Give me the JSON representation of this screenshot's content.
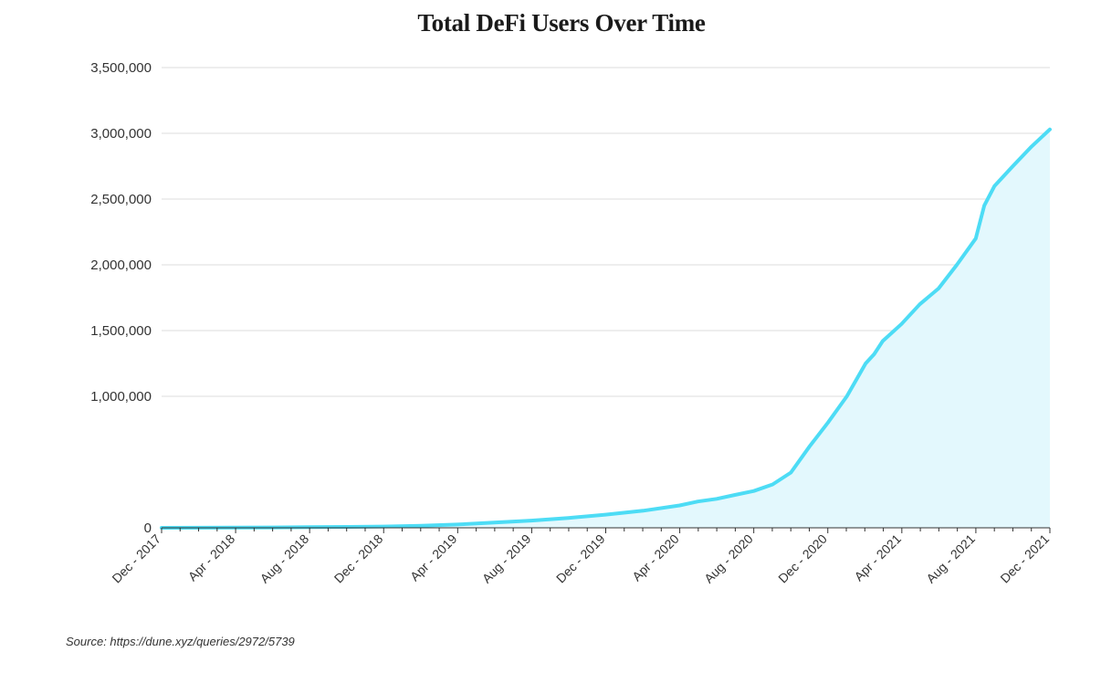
{
  "chart_data": {
    "type": "area",
    "title": "Total DeFi Users Over Time",
    "xlabel": "",
    "ylabel": "",
    "ylim": [
      0,
      3500000
    ],
    "y_ticks": [
      "3,500,000",
      "3,000,000",
      "2,500,000",
      "2,000,000",
      "1,500,000",
      "1,000,000",
      "0"
    ],
    "x_ticks": [
      "Dec - 2017",
      "Apr - 2018",
      "Aug - 2018",
      "Dec - 2018",
      "Apr - 2019",
      "Aug - 2019",
      "Dec - 2019",
      "Apr - 2020",
      "Aug - 2020",
      "Dec - 2020",
      "Apr - 2021",
      "Aug - 2021",
      "Dec - 2021"
    ],
    "grid": true,
    "legend": "none",
    "series": [
      {
        "x": [
          "2017-12",
          "2018-02",
          "2018-04",
          "2018-06",
          "2018-08",
          "2018-10",
          "2018-12",
          "2019-02",
          "2019-04",
          "2019-06",
          "2019-08",
          "2019-10",
          "2019-12",
          "2020-02",
          "2020-04",
          "2020-05",
          "2020-06",
          "2020-07",
          "2020-08",
          "2020-09",
          "2020-10",
          "2020-11",
          "2020-12",
          "2021-01",
          "2021-02",
          "2021-02-15",
          "2021-03",
          "2021-04",
          "2021-05",
          "2021-06",
          "2021-07",
          "2021-08",
          "2021-08-15",
          "2021-09",
          "2021-10",
          "2021-11",
          "2021-12"
        ],
        "values": [
          0,
          1000,
          2000,
          3000,
          5000,
          7000,
          10000,
          15000,
          25000,
          40000,
          55000,
          75000,
          100000,
          130000,
          170000,
          200000,
          220000,
          250000,
          280000,
          330000,
          420000,
          620000,
          800000,
          1000000,
          1250000,
          1320000,
          1420000,
          1550000,
          1700000,
          1820000,
          2000000,
          2200000,
          2450000,
          2600000,
          2750000,
          2900000,
          3030000
        ]
      }
    ],
    "colors": {
      "line": "#4ddcf5",
      "fill": "#e3f8fd",
      "grid": "#e8e8e8",
      "axis": "#333333"
    }
  },
  "source": "Source: https://dune.xyz/queries/2972/5739"
}
